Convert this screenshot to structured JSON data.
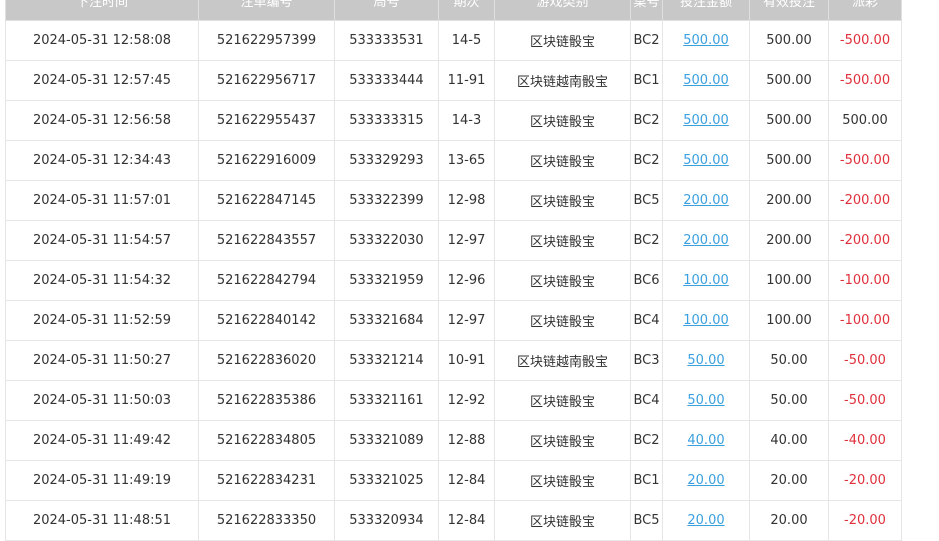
{
  "headers": [
    "下注时间",
    "注单编号",
    "局号",
    "期次",
    "游戏类别",
    "桌号",
    "投注金额",
    "有效投注",
    "派彩"
  ],
  "colors": {
    "header_bg": "#c8c8c8",
    "link": "#3aa0e0",
    "negative": "#e0303c"
  },
  "rows": [
    [
      "2024-05-31 12:58:08",
      "521622957399",
      "533333531",
      "14-5",
      "区块链骰宝",
      "BC2",
      "500.00",
      "500.00",
      "-500.00"
    ],
    [
      "2024-05-31 12:57:45",
      "521622956717",
      "533333444",
      "11-91",
      "区块链越南骰宝",
      "BC1",
      "500.00",
      "500.00",
      "-500.00"
    ],
    [
      "2024-05-31 12:56:58",
      "521622955437",
      "533333315",
      "14-3",
      "区块链骰宝",
      "BC2",
      "500.00",
      "500.00",
      "500.00"
    ],
    [
      "2024-05-31 12:34:43",
      "521622916009",
      "533329293",
      "13-65",
      "区块链骰宝",
      "BC2",
      "500.00",
      "500.00",
      "-500.00"
    ],
    [
      "2024-05-31 11:57:01",
      "521622847145",
      "533322399",
      "12-98",
      "区块链骰宝",
      "BC5",
      "200.00",
      "200.00",
      "-200.00"
    ],
    [
      "2024-05-31 11:54:57",
      "521622843557",
      "533322030",
      "12-97",
      "区块链骰宝",
      "BC2",
      "200.00",
      "200.00",
      "-200.00"
    ],
    [
      "2024-05-31 11:54:32",
      "521622842794",
      "533321959",
      "12-96",
      "区块链骰宝",
      "BC6",
      "100.00",
      "100.00",
      "-100.00"
    ],
    [
      "2024-05-31 11:52:59",
      "521622840142",
      "533321684",
      "12-97",
      "区块链骰宝",
      "BC4",
      "100.00",
      "100.00",
      "-100.00"
    ],
    [
      "2024-05-31 11:50:27",
      "521622836020",
      "533321214",
      "10-91",
      "区块链越南骰宝",
      "BC3",
      "50.00",
      "50.00",
      "-50.00"
    ],
    [
      "2024-05-31 11:50:03",
      "521622835386",
      "533321161",
      "12-92",
      "区块链骰宝",
      "BC4",
      "50.00",
      "50.00",
      "-50.00"
    ],
    [
      "2024-05-31 11:49:42",
      "521622834805",
      "533321089",
      "12-88",
      "区块链骰宝",
      "BC2",
      "40.00",
      "40.00",
      "-40.00"
    ],
    [
      "2024-05-31 11:49:19",
      "521622834231",
      "533321025",
      "12-84",
      "区块链骰宝",
      "BC1",
      "20.00",
      "20.00",
      "-20.00"
    ],
    [
      "2024-05-31 11:48:51",
      "521622833350",
      "533320934",
      "12-84",
      "区块链骰宝",
      "BC5",
      "20.00",
      "20.00",
      "-20.00"
    ]
  ]
}
